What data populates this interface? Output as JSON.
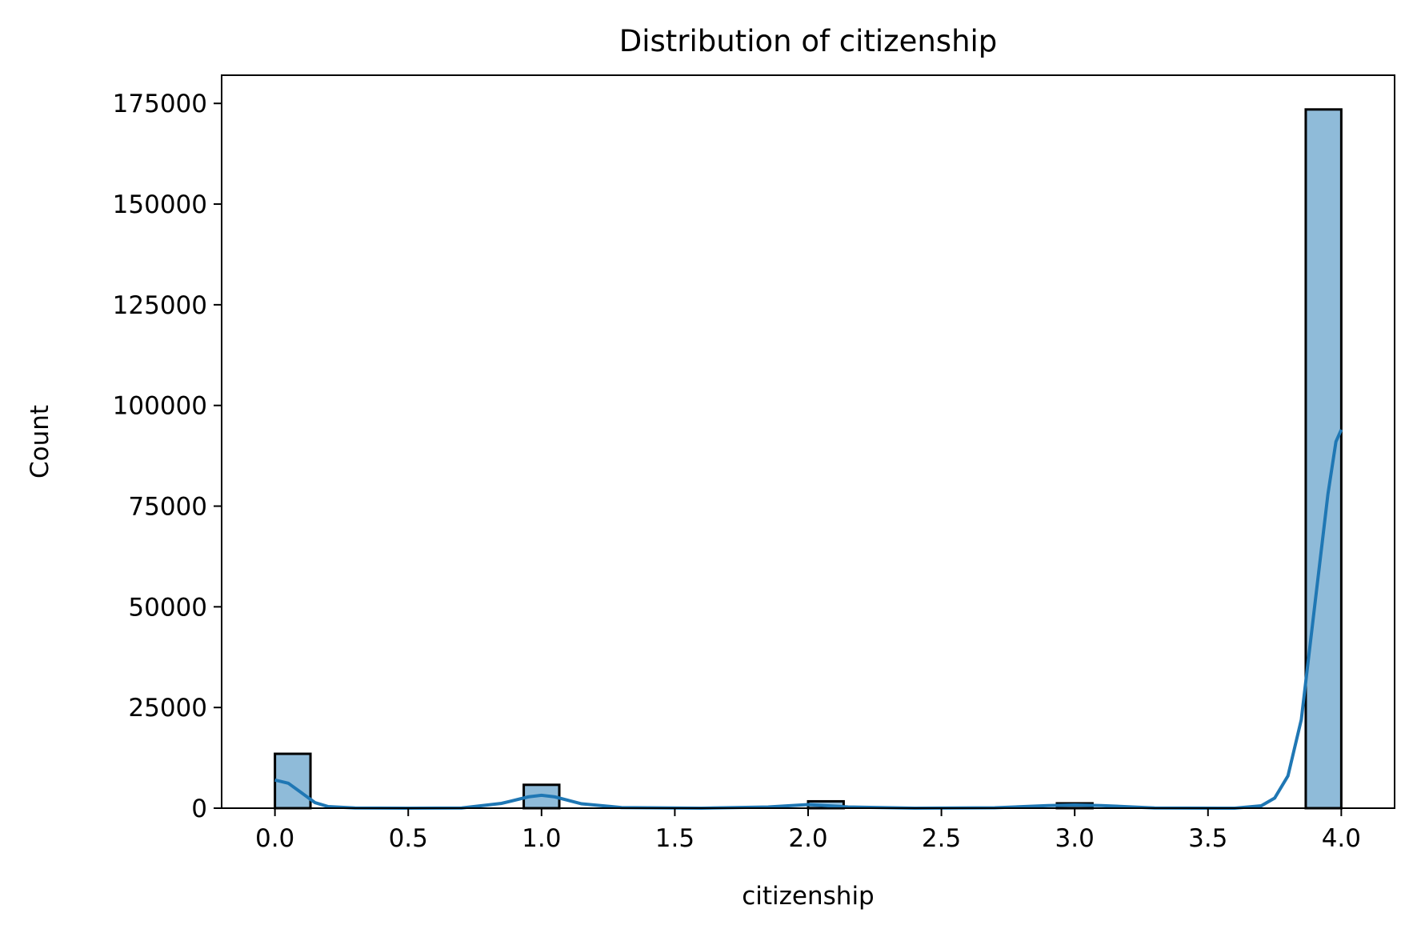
{
  "chart_data": {
    "type": "bar",
    "title": "Distribution of citizenship",
    "xlabel": "citizenship",
    "ylabel": "Count",
    "xlim": [
      -0.2,
      4.2
    ],
    "ylim": [
      0,
      182000
    ],
    "x_ticks": [
      "0.0",
      "0.5",
      "1.0",
      "1.5",
      "2.0",
      "2.5",
      "3.0",
      "3.5",
      "4.0"
    ],
    "y_ticks": [
      "0",
      "25000",
      "50000",
      "75000",
      "100000",
      "125000",
      "150000",
      "175000"
    ],
    "bin_width": 0.1333,
    "bins": [
      {
        "x0": 0.0,
        "count": 13500
      },
      {
        "x0": 0.9333,
        "count": 5800
      },
      {
        "x0": 2.0,
        "count": 1700
      },
      {
        "x0": 2.9333,
        "count": 1200
      },
      {
        "x0": 3.8667,
        "count": 173500
      }
    ],
    "kde": {
      "x": [
        0.0,
        0.05,
        0.1,
        0.15,
        0.2,
        0.3,
        0.5,
        0.7,
        0.85,
        0.95,
        1.0,
        1.05,
        1.15,
        1.3,
        1.6,
        1.85,
        2.0,
        2.15,
        2.4,
        2.7,
        2.9,
        3.0,
        3.1,
        3.3,
        3.6,
        3.7,
        3.75,
        3.8,
        3.85,
        3.9,
        3.95,
        3.98,
        4.0
      ],
      "y": [
        7000,
        6200,
        3800,
        1400,
        400,
        50,
        0,
        60,
        1200,
        2800,
        3200,
        2800,
        1100,
        150,
        0,
        300,
        900,
        300,
        0,
        100,
        650,
        800,
        650,
        50,
        0,
        600,
        2500,
        8000,
        22000,
        50000,
        78000,
        91000,
        94000
      ]
    },
    "bar_color": "#8fbbd9",
    "bar_edge": "#000000",
    "line_color": "#1f77b4",
    "grid": false,
    "legend": "none"
  }
}
